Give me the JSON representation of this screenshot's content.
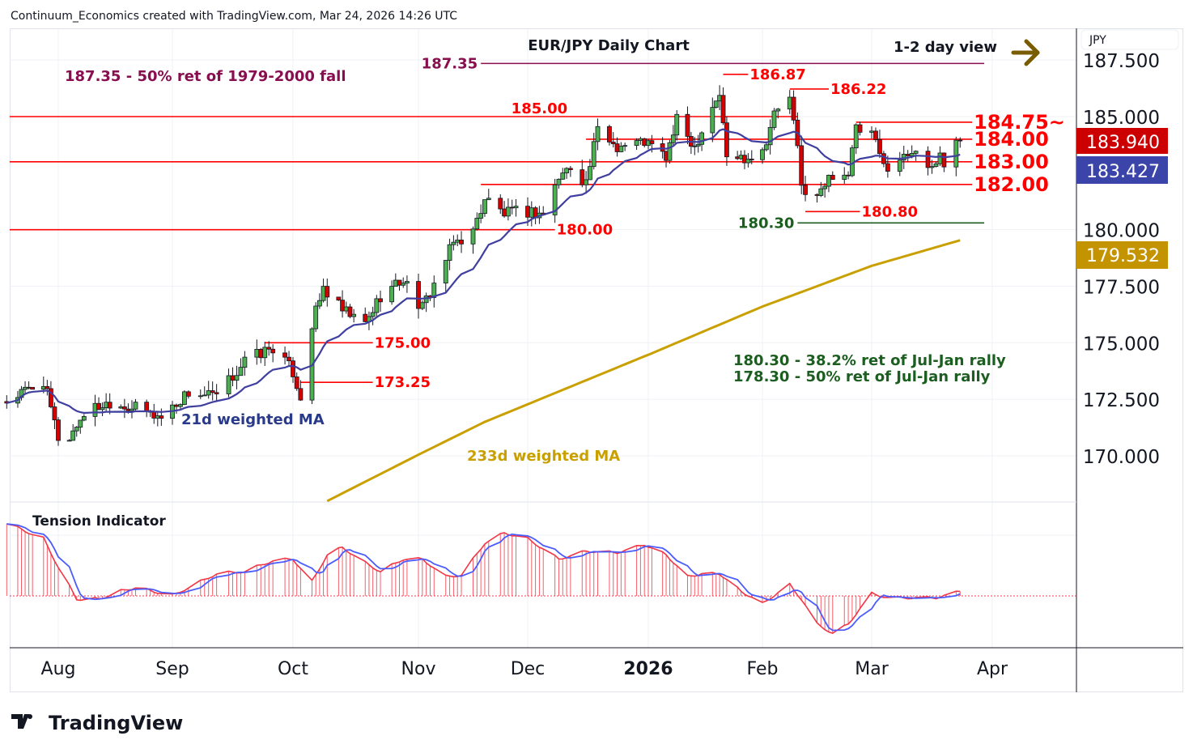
{
  "header": {
    "attribution": "Continuum_Economics created with TradingView.com, Mar 24, 2026 14:26 UTC"
  },
  "footer": {
    "logo_text": "TradingView"
  },
  "chart_data": {
    "type": "candlestick",
    "title": "EUR/JPY Daily Chart",
    "view_label": "1-2 day view",
    "currency": "JPY",
    "y_ticks": [
      "187.500",
      "185.000",
      "180.000",
      "177.500",
      "175.000",
      "172.500",
      "170.000"
    ],
    "ylim": [
      168.3,
      188.3
    ],
    "x_ticks": [
      {
        "date": "2025-08-01",
        "label": "Aug"
      },
      {
        "date": "2025-09-01",
        "label": "Sep"
      },
      {
        "date": "2025-10-01",
        "label": "Oct"
      },
      {
        "date": "2025-11-03",
        "label": "Nov"
      },
      {
        "date": "2025-12-01",
        "label": "Dec"
      },
      {
        "date": "2026-01-01",
        "label": "2026"
      },
      {
        "date": "2026-02-02",
        "label": "Feb"
      },
      {
        "date": "2026-03-02",
        "label": "Mar"
      },
      {
        "date": "2026-04-01",
        "label": "Apr"
      }
    ],
    "price_tags": {
      "last": "183.940",
      "wma21": "183.427",
      "wma233": "179.532"
    },
    "close_keypoints": [
      [
        "2025-07-18",
        172.4
      ],
      [
        "2025-07-28",
        173.3
      ],
      [
        "2025-08-01",
        170.8
      ],
      [
        "2025-08-04",
        170.8
      ],
      [
        "2025-08-08",
        171.9
      ],
      [
        "2025-08-15",
        172.4
      ],
      [
        "2025-08-22",
        172.1
      ],
      [
        "2025-08-29",
        171.7
      ],
      [
        "2025-09-05",
        172.8
      ],
      [
        "2025-09-12",
        172.6
      ],
      [
        "2025-09-19",
        174.2
      ],
      [
        "2025-09-26",
        174.8
      ],
      [
        "2025-10-01",
        173.7
      ],
      [
        "2025-10-03",
        172.6
      ],
      [
        "2025-10-06",
        175.8
      ],
      [
        "2025-10-09",
        177.4
      ],
      [
        "2025-10-14",
        176.4
      ],
      [
        "2025-10-20",
        175.8
      ],
      [
        "2025-10-24",
        177.1
      ],
      [
        "2025-10-30",
        177.8
      ],
      [
        "2025-11-04",
        176.5
      ],
      [
        "2025-11-07",
        177.6
      ],
      [
        "2025-11-12",
        179.4
      ],
      [
        "2025-11-17",
        179.9
      ],
      [
        "2025-11-20",
        181.4
      ],
      [
        "2025-11-25",
        180.7
      ],
      [
        "2025-12-01",
        180.8
      ],
      [
        "2025-12-05",
        180.7
      ],
      [
        "2025-12-09",
        182.3
      ],
      [
        "2025-12-12",
        182.8
      ],
      [
        "2025-12-16",
        182.1
      ],
      [
        "2025-12-19",
        184.4
      ],
      [
        "2025-12-24",
        183.7
      ],
      [
        "2025-12-31",
        183.9
      ],
      [
        "2026-01-06",
        183.2
      ],
      [
        "2026-01-09",
        184.8
      ],
      [
        "2026-01-14",
        183.7
      ],
      [
        "2026-01-19",
        185.5
      ],
      [
        "2026-01-21",
        186.0
      ],
      [
        "2026-01-23",
        183.2
      ],
      [
        "2026-01-28",
        183.2
      ],
      [
        "2026-02-02",
        183.5
      ],
      [
        "2026-02-05",
        185.1
      ],
      [
        "2026-02-09",
        185.9
      ],
      [
        "2026-02-11",
        183.5
      ],
      [
        "2026-02-12",
        181.9
      ],
      [
        "2026-02-16",
        181.4
      ],
      [
        "2026-02-20",
        182.5
      ],
      [
        "2026-02-24",
        182.5
      ],
      [
        "2026-02-26",
        184.4
      ],
      [
        "2026-03-02",
        184.2
      ],
      [
        "2026-03-05",
        182.8
      ],
      [
        "2026-03-10",
        183.2
      ],
      [
        "2026-03-13",
        183.7
      ],
      [
        "2026-03-17",
        182.5
      ],
      [
        "2026-03-19",
        183.4
      ],
      [
        "2026-03-20",
        182.8
      ],
      [
        "2026-03-23",
        184.1
      ],
      [
        "2026-03-24",
        183.94
      ]
    ],
    "wma233_keypoints": [
      [
        "2025-10-10",
        168.0
      ],
      [
        "2025-11-20",
        171.5
      ],
      [
        "2025-12-31",
        174.4
      ],
      [
        "2026-02-02",
        176.6
      ],
      [
        "2026-03-02",
        178.4
      ],
      [
        "2026-03-24",
        179.532
      ]
    ],
    "levels": [
      {
        "price": 187.35,
        "from": "2025-11-19",
        "to": "2026-03-30",
        "color": "#880e4f",
        "label": "187.35",
        "label_side": "left"
      },
      {
        "price": 185.0,
        "from": "2025-07-10",
        "to": "2026-02-11",
        "color": "#ff0000",
        "label": "185.00",
        "label_at": "2025-12-04"
      },
      {
        "price": 184.75,
        "from": "2026-02-26",
        "to": "2026-03-27",
        "color": "#ff0000",
        "label": "184.75~",
        "label_side": "right",
        "big": true
      },
      {
        "price": 184.0,
        "from": "2025-12-16",
        "to": "2026-03-27",
        "color": "#ff0000",
        "label": "184.00",
        "label_side": "right",
        "big": true
      },
      {
        "price": 183.0,
        "from": "2025-07-10",
        "to": "2026-03-27",
        "color": "#ff0000",
        "label": "183.00",
        "label_side": "right",
        "big": true
      },
      {
        "price": 182.0,
        "from": "2025-11-19",
        "to": "2026-03-27",
        "color": "#ff0000",
        "label": "182.00",
        "label_side": "right",
        "big": true
      },
      {
        "price": 180.0,
        "from": "2025-07-10",
        "to": "2025-12-08",
        "color": "#ff0000",
        "label": "180.00",
        "label_side": "right"
      },
      {
        "price": 175.0,
        "from": "2025-09-24",
        "to": "2025-10-22",
        "color": "#ff0000",
        "label": "175.00",
        "label_side": "right"
      },
      {
        "price": 173.25,
        "from": "2025-10-03",
        "to": "2025-10-22",
        "color": "#ff0000",
        "label": "173.25",
        "label_side": "right"
      },
      {
        "price": 186.87,
        "from": "2026-01-22",
        "to": "2026-01-29",
        "color": "#ff0000",
        "label": "186.87",
        "label_side": "right"
      },
      {
        "price": 186.22,
        "from": "2026-02-09",
        "to": "2026-02-19",
        "color": "#ff0000",
        "label": "186.22",
        "label_side": "right"
      },
      {
        "price": 180.8,
        "from": "2026-02-13",
        "to": "2026-02-27",
        "color": "#ff0000",
        "label": "180.80",
        "label_side": "right"
      },
      {
        "price": 180.3,
        "from": "2026-02-11",
        "to": "2026-03-30",
        "color": "#1b5e20",
        "label": "180.30",
        "label_side": "left"
      }
    ],
    "annotations": {
      "fib_note": "187.35 - 50% ret of 1979-2000 fall",
      "ret1": "180.30 - 38.2% ret of Jul-Jan rally",
      "ret2": "178.30 - 50% ret of Jul-Jan rally",
      "wma21_label": "21d weighted MA",
      "wma233_label": "233d weighted MA"
    },
    "tension": {
      "title": "Tension Indicator",
      "keypoints": [
        [
          "2025-07-18",
          100
        ],
        [
          "2025-07-28",
          79
        ],
        [
          "2025-08-01",
          40
        ],
        [
          "2025-08-06",
          -4
        ],
        [
          "2025-08-12",
          -4
        ],
        [
          "2025-08-18",
          7
        ],
        [
          "2025-08-22",
          12
        ],
        [
          "2025-09-01",
          1
        ],
        [
          "2025-09-08",
          20
        ],
        [
          "2025-09-12",
          31
        ],
        [
          "2025-09-19",
          34
        ],
        [
          "2025-09-26",
          49
        ],
        [
          "2025-10-01",
          51
        ],
        [
          "2025-10-06",
          20
        ],
        [
          "2025-10-10",
          57
        ],
        [
          "2025-10-14",
          67
        ],
        [
          "2025-10-20",
          46
        ],
        [
          "2025-10-24",
          34
        ],
        [
          "2025-10-30",
          51
        ],
        [
          "2025-11-04",
          51
        ],
        [
          "2025-11-10",
          27
        ],
        [
          "2025-11-14",
          29
        ],
        [
          "2025-11-20",
          73
        ],
        [
          "2025-11-25",
          87
        ],
        [
          "2025-12-01",
          79
        ],
        [
          "2025-12-09",
          51
        ],
        [
          "2025-12-16",
          62
        ],
        [
          "2025-12-24",
          60
        ],
        [
          "2025-12-31",
          71
        ],
        [
          "2026-01-06",
          57
        ],
        [
          "2026-01-12",
          27
        ],
        [
          "2026-01-16",
          31
        ],
        [
          "2026-01-21",
          31
        ],
        [
          "2026-01-27",
          7
        ],
        [
          "2026-02-02",
          -10
        ],
        [
          "2026-02-09",
          16
        ],
        [
          "2026-02-12",
          -4
        ],
        [
          "2026-02-16",
          -38
        ],
        [
          "2026-02-20",
          -51
        ],
        [
          "2026-02-24",
          -38
        ],
        [
          "2026-03-02",
          4
        ],
        [
          "2026-03-06",
          -2
        ],
        [
          "2026-03-12",
          -2
        ],
        [
          "2026-03-18",
          -2
        ],
        [
          "2026-03-24",
          7
        ]
      ]
    },
    "colors": {
      "up": "#4caf50",
      "down": "#d50000",
      "wma21": "#3f3fa0",
      "wma233": "#c9a000",
      "tension_bar": "#f23645",
      "tension_line": "#4a5cff",
      "last_tag": "#cc0000",
      "wma21_tag": "#3b44a8",
      "wma233_tag": "#c49400",
      "arrow": "#7a5c00"
    }
  }
}
